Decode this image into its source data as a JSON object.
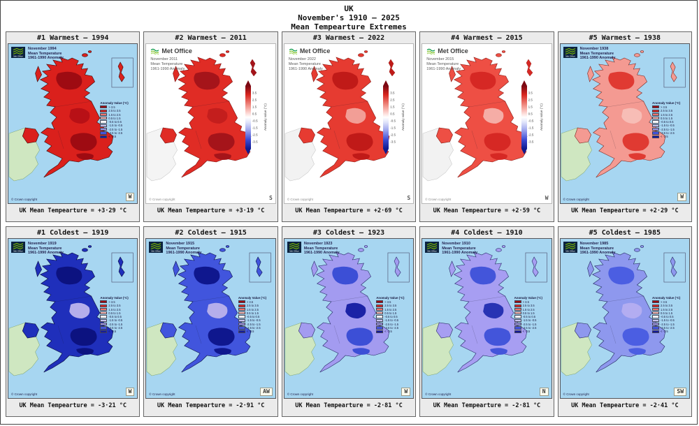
{
  "header": {
    "line1": "UK",
    "line2": "November's 1910 – 2025",
    "line3": "Mean Tempearture Extremes"
  },
  "map_common": {
    "logo_text": "Met Office",
    "meta_line2": "Mean Temperature",
    "meta_line3": "1961-1990 Anomaly",
    "copyright": "© Crown copyright"
  },
  "legend": {
    "title": "Anomaly Value (°C)",
    "entries": [
      {
        "label": "> 3.5",
        "color": "#9e0b12"
      },
      {
        "label": "2.5 to 3.5",
        "color": "#dd2822"
      },
      {
        "label": "1.5 to 2.5",
        "color": "#f0776e"
      },
      {
        "label": "0.5 to 1.5",
        "color": "#f9bcb6"
      },
      {
        "label": "-0.5 to 0.5",
        "color": "#ffffff"
      },
      {
        "label": "-1.5 to -0.5",
        "color": "#c9c5f1"
      },
      {
        "label": "-2.5 to -1.5",
        "color": "#a099e8"
      },
      {
        "label": "-3.5 to -2.5",
        "color": "#4355dc"
      },
      {
        "label": "< -3.5",
        "color": "#141a9e"
      }
    ],
    "colorbar_ticks": [
      "3.5",
      "2.5",
      "1.5",
      "0.5",
      "-0.5",
      "-1.5",
      "-2.5",
      "-3.5"
    ],
    "colorbar_label": "Anomaly value (°C)"
  },
  "panels": [
    {
      "title": "#1 Warmest – 1994",
      "year": 1994,
      "rank": "#1",
      "category": "Warmest",
      "map_label": "November 1994",
      "caption": "UK Mean Tempearture = +3·29 °C",
      "mean_temp_c": 3.29,
      "corner_letter": "W",
      "style": "classic",
      "colors": {
        "sea": "#a7d6f1",
        "ireland": "#cfe7c1",
        "land": "#da201c",
        "patchA": "#9e0b12",
        "patchB": "#b81016",
        "coast": "#3a0c0c"
      }
    },
    {
      "title": "#2 Warmest – 2011",
      "year": 2011,
      "rank": "#2",
      "category": "Warmest",
      "map_label": "November 2011",
      "caption": "UK Mean Tempearture = +3·19 °C",
      "mean_temp_c": 3.19,
      "corner_letter": "S",
      "style": "modern",
      "colors": {
        "sea": "#ffffff",
        "ireland": "#f4f4f4",
        "land": "#e02c25",
        "patchA": "#a5141a",
        "patchB": "#c41e1d",
        "coast": "#7a1010"
      }
    },
    {
      "title": "#3 Warmest – 2022",
      "year": 2022,
      "rank": "#3",
      "category": "Warmest",
      "map_label": "November 2022",
      "caption": "UK Mean Tempearture = +2·69 °C",
      "mean_temp_c": 2.69,
      "corner_letter": "S",
      "style": "modern",
      "colors": {
        "sea": "#ffffff",
        "ireland": "#f2f2f2",
        "land": "#e63b31",
        "patchA": "#c01a18",
        "patchB": "#f29e96",
        "coast": "#8a1a14"
      }
    },
    {
      "title": "#4 Warmest – 2015",
      "year": 2015,
      "rank": "#4",
      "category": "Warmest",
      "map_label": "November 2015",
      "caption": "UK Mean Tempearture = +2·59 °C",
      "mean_temp_c": 2.59,
      "corner_letter": "W",
      "style": "modern",
      "colors": {
        "sea": "#ffffff",
        "ireland": "#f2f2f2",
        "land": "#ee4f44",
        "patchA": "#d62824",
        "patchB": "#f5ada6",
        "coast": "#8a1a14"
      }
    },
    {
      "title": "#5 Warmest – 1938",
      "year": 1938,
      "rank": "#5",
      "category": "Warmest",
      "map_label": "November 1938",
      "caption": "UK Mean Tempearture = +2·29 °C",
      "mean_temp_c": 2.29,
      "corner_letter": "W",
      "style": "classic",
      "colors": {
        "sea": "#a7d6f1",
        "ireland": "#cfe7c1",
        "land": "#f49a92",
        "patchA": "#e03a32",
        "patchB": "#f7bdb6",
        "coast": "#7a2a24"
      }
    },
    {
      "title": "#1 Coldest – 1919",
      "year": 1919,
      "rank": "#1",
      "category": "Coldest",
      "map_label": "November 1919",
      "caption": "UK Mean Tempearture = -3·21 °C",
      "mean_temp_c": -3.21,
      "corner_letter": "W",
      "style": "classic",
      "colors": {
        "sea": "#a7d6f1",
        "ireland": "#cfe7c1",
        "land": "#1f2fbb",
        "patchA": "#0c1280",
        "patchB": "#b5aeeb",
        "coast": "#05073a"
      }
    },
    {
      "title": "#2 Coldest – 1915",
      "year": 1915,
      "rank": "#2",
      "category": "Coldest",
      "map_label": "November 1915",
      "caption": "UK Mean Tempearture = -2·91 °C",
      "mean_temp_c": -2.91,
      "corner_letter": "AW",
      "style": "classic",
      "colors": {
        "sea": "#a7d6f1",
        "ireland": "#cfe7c1",
        "land": "#4155dd",
        "patchA": "#0f178e",
        "patchB": "#b5aeeb",
        "coast": "#0a0f4a"
      }
    },
    {
      "title": "#3 Coldest – 1923",
      "year": 1923,
      "rank": "#3",
      "category": "Coldest",
      "map_label": "November 1923",
      "caption": "UK Mean Tempearture = -2·81 °C",
      "mean_temp_c": -2.81,
      "corner_letter": "W",
      "style": "classic",
      "colors": {
        "sea": "#a7d6f1",
        "ireland": "#cfe7c1",
        "land": "#a39bf0",
        "patchA": "#3c4fd6",
        "patchB": "#1b22a6",
        "coast": "#2a2a6a"
      }
    },
    {
      "title": "#4 Coldest – 1910",
      "year": 1910,
      "rank": "#4",
      "category": "Coldest",
      "map_label": "November 1910",
      "caption": "UK Mean Tempearture = -2·81 °C",
      "mean_temp_c": -2.81,
      "corner_letter": "N",
      "style": "classic",
      "colors": {
        "sea": "#a7d6f1",
        "ireland": "#cfe7c1",
        "land": "#a79ef2",
        "patchA": "#4355da",
        "patchB": "#2833b4",
        "coast": "#2a2a6a"
      }
    },
    {
      "title": "#5 Coldest – 1985",
      "year": 1985,
      "rank": "#5",
      "category": "Coldest",
      "map_label": "November 1985",
      "caption": "UK Mean Tempearture = -2·41 °C",
      "mean_temp_c": -2.41,
      "corner_letter": "SW",
      "style": "classic",
      "colors": {
        "sea": "#a7d6f1",
        "ireland": "#cfe7c1",
        "land": "#8e98ee",
        "patchA": "#4b5ee2",
        "patchB": "#b3adf1",
        "coast": "#22255e"
      }
    }
  ]
}
